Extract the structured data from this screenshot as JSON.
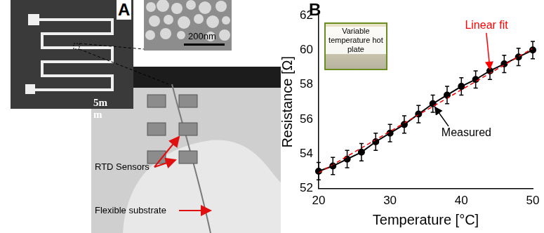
{
  "panel_labels": [
    "A",
    "B"
  ],
  "panel_a": {
    "sem_scale_bar": "200nm",
    "photo_scale_bar": [
      "5m",
      "m"
    ],
    "annotations": [
      "RTD Sensors",
      "Flexible substrate"
    ]
  },
  "chart_data": {
    "type": "line",
    "x_label": "Temperature [°C]",
    "y_label": "Resistance [Ω]",
    "inset": "Variable temperature hot plate",
    "xlim": [
      20,
      50
    ],
    "xticks": [
      20,
      30,
      40,
      50
    ],
    "ylim": [
      52,
      62
    ],
    "yticks": [
      52,
      54,
      56,
      58,
      60,
      62
    ],
    "grid": false,
    "series": [
      {
        "name": "Measured",
        "color": "#000000",
        "marker": "circle",
        "line_style": "solid",
        "x": [
          20,
          22,
          24,
          26,
          28,
          30,
          32,
          34,
          36,
          38,
          40,
          42,
          44,
          46,
          48,
          50
        ],
        "values": [
          53.0,
          53.3,
          53.7,
          54.1,
          54.7,
          55.2,
          55.7,
          56.3,
          56.9,
          57.4,
          57.9,
          58.3,
          58.8,
          59.2,
          59.6,
          60.0
        ],
        "error": [
          0.5,
          0.5,
          0.5,
          0.5,
          0.5,
          0.5,
          0.5,
          0.5,
          0.5,
          0.5,
          0.5,
          0.5,
          0.5,
          0.5,
          0.5,
          0.5
        ]
      },
      {
        "name": "Linear fit",
        "color": "#ff0000",
        "marker": "none",
        "line_style": "dashed",
        "x": [
          20,
          50
        ],
        "values": [
          52.9,
          60.1
        ]
      }
    ]
  }
}
